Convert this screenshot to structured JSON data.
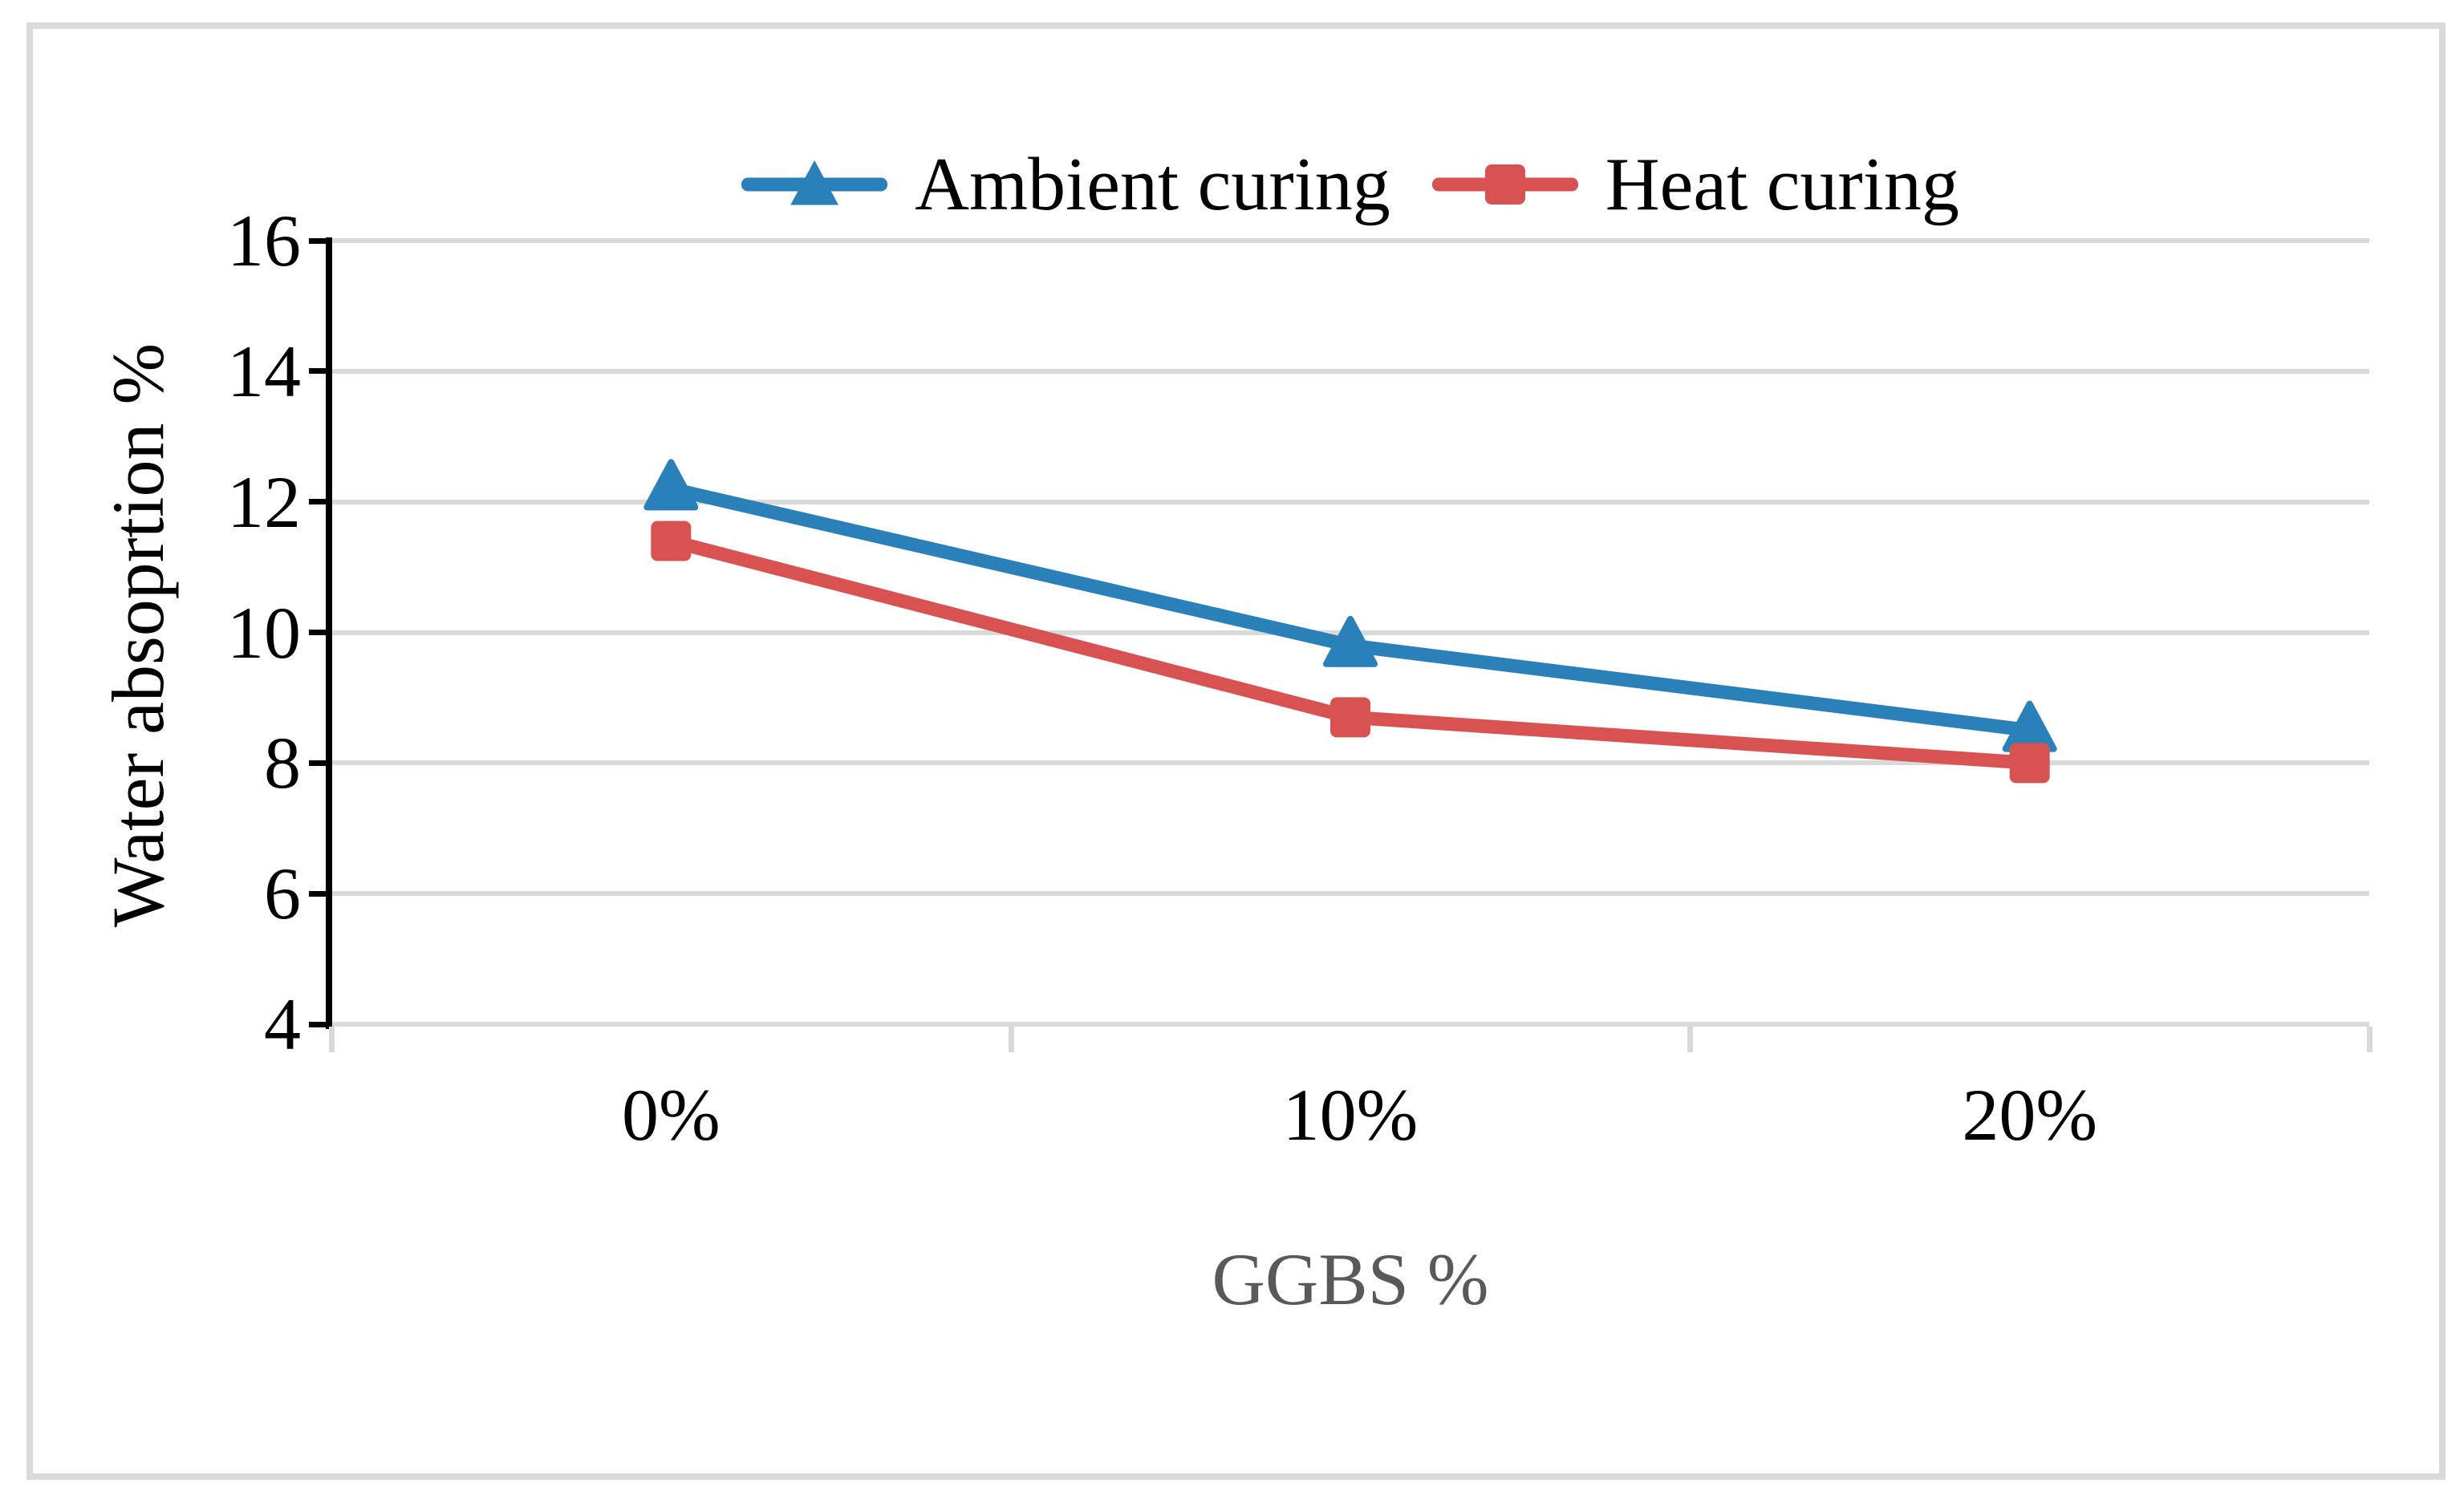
{
  "figure": {
    "background": "#ffffff",
    "border_color": "#dadada"
  },
  "legend": {
    "position": "top center",
    "items": [
      {
        "label": "Ambient curing",
        "marker": "line-with-triangle",
        "color": "#2a80b8"
      },
      {
        "label": "Heat curing",
        "marker": "line-with-square",
        "color": "#d95252"
      }
    ]
  },
  "chart_data": {
    "type": "line",
    "categories": [
      "0%",
      "10%",
      "20%"
    ],
    "series": [
      {
        "name": "Ambient curing",
        "marker": "triangle",
        "color": "#2a80b8",
        "values": [
          12.2,
          9.8,
          8.5
        ]
      },
      {
        "name": "Heat curing",
        "marker": "square",
        "color": "#d95252",
        "values": [
          11.4,
          8.7,
          8.0
        ]
      }
    ],
    "xlabel": "GGBS %",
    "ylabel": "Water absoprtion %",
    "ylim": [
      4,
      16
    ],
    "yticks": [
      4,
      6,
      8,
      10,
      12,
      14,
      16
    ],
    "grid": "horizontal",
    "gridline_color": "#d9d9d9",
    "axis_line_color": "#000000",
    "x_axis_line_color": "#d9d9d9",
    "x_title_color": "#595959",
    "tick_label_color": "#000000",
    "legend_position": "top"
  }
}
